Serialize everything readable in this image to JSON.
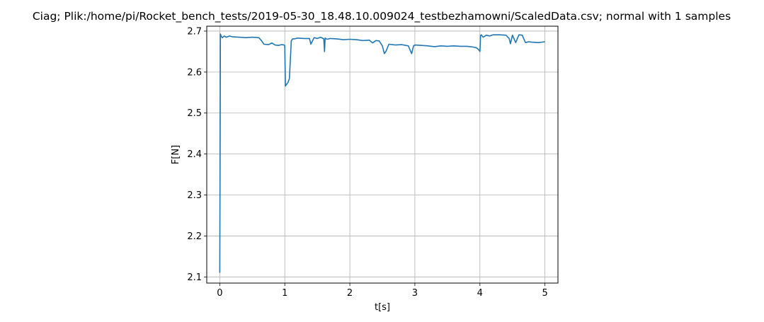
{
  "chart_data": {
    "type": "line",
    "title": "Ciag; Plik:/home/pi/Rocket_bench_tests/2019-05-30_18.48.10.009024_testbezhamowni/ScaledData.csv; normal with 1 samples",
    "xlabel": "t[s]",
    "ylabel": "F[N]",
    "xlim": [
      -0.2,
      5.2
    ],
    "ylim": [
      2.085,
      2.712
    ],
    "xticks": [
      0,
      1,
      2,
      3,
      4,
      5
    ],
    "xtick_labels": [
      "0",
      "1",
      "2",
      "3",
      "4",
      "5"
    ],
    "yticks": [
      2.1,
      2.2,
      2.3,
      2.4,
      2.5,
      2.6,
      2.7
    ],
    "ytick_labels": [
      "2.1",
      "2.2",
      "2.3",
      "2.4",
      "2.5",
      "2.6",
      "2.7"
    ],
    "grid": true,
    "line_color": "#1f77b4",
    "series": [
      {
        "x": [
          0.0,
          0.01,
          0.02,
          0.04,
          0.07,
          0.1,
          0.15,
          0.2,
          0.3,
          0.4,
          0.5,
          0.6,
          0.64,
          0.68,
          0.75,
          0.8,
          0.85,
          0.9,
          0.95,
          0.99,
          1.0,
          1.01,
          1.05,
          1.07,
          1.1,
          1.12,
          1.15,
          1.2,
          1.3,
          1.38,
          1.4,
          1.45,
          1.5,
          1.55,
          1.6,
          1.61,
          1.62,
          1.65,
          1.7,
          1.8,
          1.9,
          2.0,
          2.1,
          2.2,
          2.3,
          2.35,
          2.4,
          2.45,
          2.5,
          2.53,
          2.56,
          2.6,
          2.7,
          2.8,
          2.9,
          2.95,
          2.98,
          3.0,
          3.1,
          3.2,
          3.3,
          3.4,
          3.5,
          3.6,
          3.7,
          3.8,
          3.9,
          3.95,
          3.99,
          4.0,
          4.01,
          4.02,
          4.05,
          4.1,
          4.15,
          4.2,
          4.3,
          4.4,
          4.45,
          4.47,
          4.5,
          4.55,
          4.6,
          4.65,
          4.7,
          4.75,
          4.8,
          4.9,
          5.0
        ],
        "y": [
          2.11,
          2.693,
          2.688,
          2.684,
          2.688,
          2.685,
          2.688,
          2.686,
          2.685,
          2.684,
          2.685,
          2.684,
          2.677,
          2.668,
          2.667,
          2.671,
          2.666,
          2.665,
          2.667,
          2.666,
          2.664,
          2.566,
          2.575,
          2.584,
          2.676,
          2.681,
          2.681,
          2.683,
          2.682,
          2.682,
          2.668,
          2.684,
          2.682,
          2.685,
          2.681,
          2.65,
          2.683,
          2.68,
          2.682,
          2.681,
          2.679,
          2.68,
          2.679,
          2.677,
          2.678,
          2.671,
          2.677,
          2.676,
          2.664,
          2.645,
          2.652,
          2.668,
          2.666,
          2.667,
          2.664,
          2.645,
          2.664,
          2.666,
          2.665,
          2.664,
          2.662,
          2.664,
          2.663,
          2.664,
          2.663,
          2.663,
          2.661,
          2.659,
          2.653,
          2.65,
          2.689,
          2.691,
          2.685,
          2.69,
          2.688,
          2.691,
          2.691,
          2.69,
          2.682,
          2.669,
          2.69,
          2.672,
          2.691,
          2.69,
          2.672,
          2.674,
          2.673,
          2.672,
          2.674
        ]
      }
    ]
  }
}
